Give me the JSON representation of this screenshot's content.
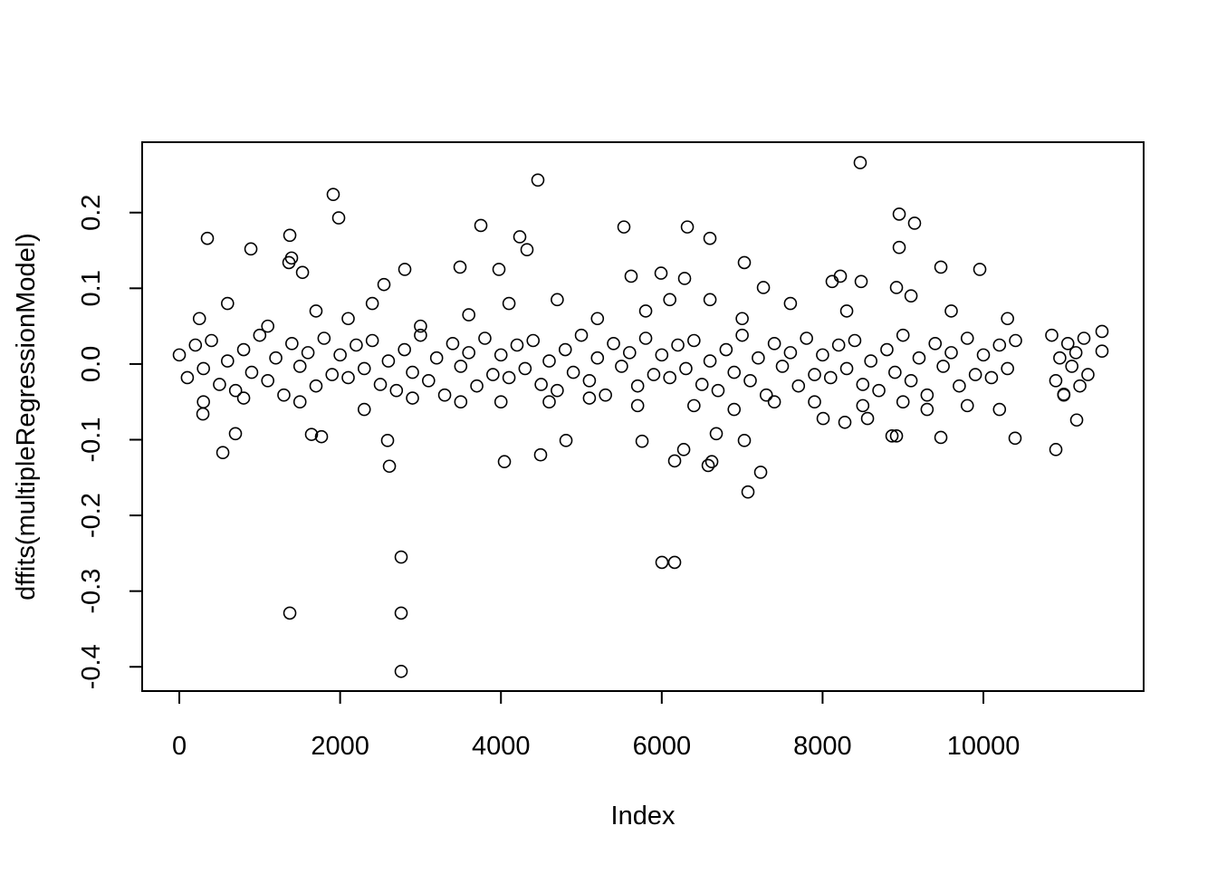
{
  "chart_data": {
    "type": "scatter",
    "x_label": "Index",
    "y_label": "dffits(multipleRegressionModel)",
    "color": "#000000",
    "xlim": [
      -462,
      11993
    ],
    "ylim": [
      -0.432,
      0.293
    ],
    "xticks": [
      0,
      2000,
      4000,
      6000,
      8000,
      10000
    ],
    "yticks": [
      -0.4,
      -0.3,
      -0.2,
      -0.1,
      {
        "value": 0,
        "label": "0.0"
      },
      0.1,
      0.2
    ],
    "x": [
      0,
      100,
      200,
      300,
      400,
      500,
      600,
      700,
      800,
      900,
      1000,
      1100,
      1200,
      1300,
      1400,
      1500,
      1600,
      1700,
      1800,
      1900,
      2000,
      2100,
      2200,
      2300,
      2400,
      2500,
      2600,
      2700,
      2800,
      2900,
      3000,
      3100,
      3200,
      3300,
      3400,
      3500,
      3600,
      3700,
      3800,
      3900,
      4000,
      4100,
      4200,
      4300,
      4400,
      4500,
      4600,
      4700,
      4800,
      4900,
      5000,
      5100,
      5200,
      5300,
      5400,
      5500,
      5600,
      5700,
      5800,
      5900,
      6000,
      6100,
      6200,
      6300,
      6400,
      6500,
      6600,
      6700,
      6800,
      6900,
      7000,
      7100,
      7200,
      7300,
      7400,
      7500,
      7600,
      7700,
      7800,
      7900,
      8000,
      8100,
      8200,
      8300,
      8400,
      8500,
      8600,
      8700,
      8800,
      8900,
      9000,
      9100,
      9200,
      9300,
      9400,
      9500,
      9600,
      9700,
      9800,
      9900,
      10000,
      10100,
      10200,
      10300,
      10400,
      10850,
      10900,
      10950,
      11000,
      11050,
      11100,
      11150,
      11200,
      11250,
      11300,
      250,
      600,
      1100,
      1700,
      2100,
      2400,
      3000,
      3600,
      4100,
      4700,
      5200,
      5800,
      6100,
      6600,
      7000,
      7600,
      8300,
      9100,
      9600,
      10300,
      300,
      800,
      1500,
      2300,
      2900,
      3500,
      4000,
      4600,
      5100,
      5700,
      6400,
      6900,
      7400,
      7900,
      8500,
      9000,
      9300,
      9800,
      10200,
      11000,
      349,
      890,
      1914,
      1982,
      1363,
      1374,
      1396,
      1532,
      541,
      698,
      1374,
      1644,
      1768,
      2590,
      2613,
      2759,
      2759,
      2759,
      2804,
      2545,
      4459,
      3750,
      4234,
      4324,
      3975,
      3491,
      4043,
      4493,
      4809,
      5529,
      5619,
      5755,
      6002,
      6160,
      6318,
      6599,
      6284,
      5991,
      6160,
      6273,
      6577,
      6622,
      6678,
      7027,
      7072,
      7230,
      7027,
      7264,
      8468,
      8953,
      9144,
      8953,
      8119,
      8221,
      8480,
      9471,
      9955,
      8919,
      8559,
      8863,
      8919,
      9471,
      10394,
      10901,
      11160,
      11475,
      11475,
      8007,
      8277,
      293
    ],
    "values": [
      0.012,
      -0.018,
      0.025,
      -0.006,
      0.031,
      -0.027,
      0.004,
      -0.035,
      0.019,
      -0.011,
      0.038,
      -0.022,
      0.008,
      -0.041,
      0.027,
      -0.003,
      0.015,
      -0.029,
      0.034,
      -0.014,
      0.012,
      -0.018,
      0.025,
      -0.006,
      0.031,
      -0.027,
      0.004,
      -0.035,
      0.019,
      -0.011,
      0.038,
      -0.022,
      0.008,
      -0.041,
      0.027,
      -0.003,
      0.015,
      -0.029,
      0.034,
      -0.014,
      0.012,
      -0.018,
      0.025,
      -0.006,
      0.031,
      -0.027,
      0.004,
      -0.035,
      0.019,
      -0.011,
      0.038,
      -0.022,
      0.008,
      -0.041,
      0.027,
      -0.003,
      0.015,
      -0.029,
      0.034,
      -0.014,
      0.012,
      -0.018,
      0.025,
      -0.006,
      0.031,
      -0.027,
      0.004,
      -0.035,
      0.019,
      -0.011,
      0.038,
      -0.022,
      0.008,
      -0.041,
      0.027,
      -0.003,
      0.015,
      -0.029,
      0.034,
      -0.014,
      0.012,
      -0.018,
      0.025,
      -0.006,
      0.031,
      -0.027,
      0.004,
      -0.035,
      0.019,
      -0.011,
      0.038,
      -0.022,
      0.008,
      -0.041,
      0.027,
      -0.003,
      0.015,
      -0.029,
      0.034,
      -0.014,
      0.012,
      -0.018,
      0.025,
      -0.006,
      0.031,
      0.038,
      -0.022,
      0.008,
      -0.041,
      0.027,
      -0.003,
      0.015,
      -0.029,
      0.034,
      -0.014,
      0.06,
      0.08,
      0.05,
      0.07,
      0.06,
      0.08,
      0.05,
      0.065,
      0.08,
      0.085,
      0.06,
      0.07,
      0.085,
      0.085,
      0.06,
      0.08,
      0.07,
      0.09,
      0.07,
      0.06,
      -0.05,
      -0.045,
      -0.05,
      -0.06,
      -0.045,
      -0.05,
      -0.05,
      -0.05,
      -0.045,
      -0.055,
      -0.055,
      -0.06,
      -0.05,
      -0.05,
      -0.055,
      -0.05,
      -0.06,
      -0.055,
      -0.06,
      -0.04,
      0.166,
      0.152,
      0.224,
      0.193,
      0.134,
      0.17,
      0.14,
      0.121,
      -0.117,
      -0.092,
      -0.329,
      -0.093,
      -0.096,
      -0.101,
      -0.135,
      -0.255,
      -0.329,
      -0.406,
      0.125,
      0.105,
      0.243,
      0.183,
      0.168,
      0.151,
      0.125,
      0.128,
      -0.129,
      -0.12,
      -0.101,
      0.181,
      0.116,
      -0.102,
      -0.262,
      -0.262,
      0.181,
      0.166,
      0.113,
      0.12,
      -0.128,
      -0.113,
      -0.134,
      -0.129,
      -0.092,
      0.134,
      -0.169,
      -0.143,
      -0.101,
      0.101,
      0.266,
      0.198,
      0.186,
      0.154,
      0.109,
      0.116,
      0.109,
      0.128,
      0.125,
      0.101,
      -0.072,
      -0.095,
      -0.095,
      -0.097,
      -0.098,
      -0.113,
      -0.074,
      0.043,
      0.017,
      -0.072,
      -0.077,
      -0.066
    ]
  }
}
